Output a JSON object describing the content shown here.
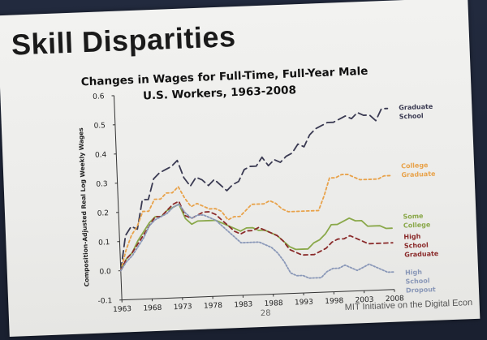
{
  "slide": {
    "title": "Skill Disparities",
    "page_number": "28",
    "footer": "MIT Initiative on the Digital Econ"
  },
  "chart_data": {
    "type": "line",
    "title_lines": [
      "Changes in Wages for Full-Time, Full-Year Male",
      "U.S. Workers, 1963-2008"
    ],
    "xlabel": "",
    "ylabel": "Composition-Adjusted Real Log Weekly Wages",
    "xlim": [
      1963,
      2008
    ],
    "ylim": [
      -0.1,
      0.6
    ],
    "x_ticks": [
      "1963",
      "1968",
      "1973",
      "1978",
      "1983",
      "1988",
      "1993",
      "1998",
      "2003",
      "2008"
    ],
    "y_ticks": [
      "0.6",
      "0.5",
      "0.4",
      "0.3",
      "0.2",
      "0.1",
      "0.0",
      "-0.1"
    ],
    "x": [
      1963,
      1964,
      1965,
      1966,
      1967,
      1968,
      1969,
      1970,
      1971,
      1972,
      1973,
      1974,
      1975,
      1976,
      1977,
      1978,
      1979,
      1980,
      1981,
      1982,
      1983,
      1984,
      1985,
      1986,
      1987,
      1988,
      1989,
      1990,
      1991,
      1992,
      1993,
      1994,
      1995,
      1996,
      1997,
      1998,
      1999,
      2000,
      2001,
      2002,
      2003,
      2004,
      2005,
      2006,
      2007,
      2008
    ],
    "series": [
      {
        "name_lines": [
          "Graduate",
          "School"
        ],
        "color": "#3a3a52",
        "dash": "10,5",
        "values": [
          0.0,
          0.12,
          0.15,
          0.14,
          0.24,
          0.24,
          0.31,
          0.33,
          0.34,
          0.35,
          0.37,
          0.31,
          0.28,
          0.31,
          0.3,
          0.28,
          0.3,
          0.28,
          0.26,
          0.28,
          0.29,
          0.33,
          0.34,
          0.34,
          0.37,
          0.34,
          0.36,
          0.35,
          0.37,
          0.38,
          0.41,
          0.4,
          0.44,
          0.46,
          0.47,
          0.48,
          0.48,
          0.49,
          0.5,
          0.49,
          0.51,
          0.5,
          0.5,
          0.48,
          0.52,
          0.52
        ]
      },
      {
        "name_lines": [
          "College",
          "Graduate"
        ],
        "color": "#e8a24a",
        "dash": "3,3",
        "values": [
          0.0,
          0.07,
          0.12,
          0.15,
          0.2,
          0.2,
          0.24,
          0.24,
          0.26,
          0.26,
          0.28,
          0.24,
          0.21,
          0.22,
          0.21,
          0.2,
          0.2,
          0.19,
          0.16,
          0.17,
          0.17,
          0.19,
          0.21,
          0.21,
          0.21,
          0.22,
          0.21,
          0.19,
          0.18,
          0.18,
          0.18,
          0.18,
          0.18,
          0.18,
          0.23,
          0.29,
          0.29,
          0.3,
          0.3,
          0.29,
          0.28,
          0.28,
          0.28,
          0.28,
          0.29,
          0.29
        ]
      },
      {
        "name_lines": [
          "Some",
          "College"
        ],
        "color": "#8aa84a",
        "dash": "",
        "values": [
          0.0,
          0.04,
          0.06,
          0.1,
          0.13,
          0.16,
          0.18,
          0.18,
          0.2,
          0.21,
          0.22,
          0.17,
          0.15,
          0.16,
          0.16,
          0.16,
          0.16,
          0.15,
          0.14,
          0.13,
          0.12,
          0.13,
          0.13,
          0.12,
          0.12,
          0.11,
          0.1,
          0.08,
          0.06,
          0.05,
          0.05,
          0.05,
          0.07,
          0.08,
          0.1,
          0.13,
          0.13,
          0.14,
          0.15,
          0.14,
          0.14,
          0.12,
          0.12,
          0.12,
          0.11,
          0.11
        ]
      },
      {
        "name_lines": [
          "High",
          "School",
          "Graduate"
        ],
        "color": "#8a2a2a",
        "dash": "5,4",
        "values": [
          0.0,
          0.04,
          0.06,
          0.09,
          0.12,
          0.15,
          0.18,
          0.18,
          0.2,
          0.22,
          0.23,
          0.18,
          0.17,
          0.18,
          0.19,
          0.19,
          0.18,
          0.16,
          0.14,
          0.12,
          0.11,
          0.12,
          0.12,
          0.13,
          0.12,
          0.11,
          0.1,
          0.08,
          0.05,
          0.04,
          0.03,
          0.03,
          0.03,
          0.04,
          0.05,
          0.07,
          0.08,
          0.08,
          0.09,
          0.08,
          0.07,
          0.06,
          0.06,
          0.06,
          0.06,
          0.06
        ]
      },
      {
        "name_lines": [
          "High",
          "School",
          "Dropout"
        ],
        "color": "#8a98b8",
        "dash": "2,2",
        "values": [
          0.0,
          0.03,
          0.05,
          0.08,
          0.11,
          0.15,
          0.17,
          0.18,
          0.19,
          0.21,
          0.22,
          0.19,
          0.17,
          0.18,
          0.18,
          0.17,
          0.16,
          0.14,
          0.12,
          0.1,
          0.08,
          0.08,
          0.08,
          0.08,
          0.07,
          0.06,
          0.04,
          0.01,
          -0.03,
          -0.04,
          -0.04,
          -0.05,
          -0.05,
          -0.05,
          -0.03,
          -0.02,
          -0.02,
          -0.01,
          -0.02,
          -0.03,
          -0.02,
          -0.01,
          -0.02,
          -0.03,
          -0.04,
          -0.04
        ]
      }
    ]
  }
}
